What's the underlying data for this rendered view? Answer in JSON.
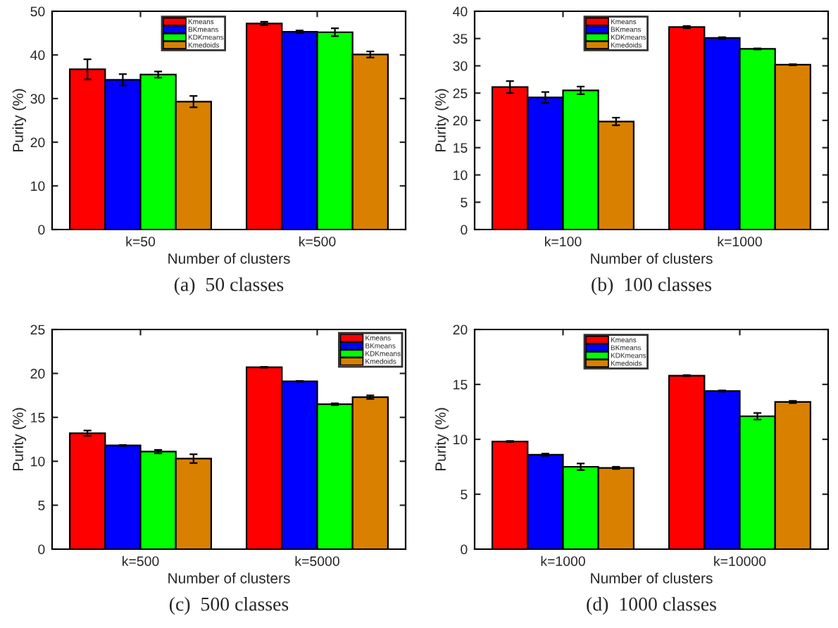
{
  "chart_data": [
    {
      "type": "bar",
      "title": "(a)  50 classes",
      "xlabel": "Number of clusters",
      "ylabel": "Purity (%)",
      "categories": [
        "k=50",
        "k=500"
      ],
      "ylim": [
        0,
        50
      ],
      "yticks": [
        0,
        10,
        20,
        30,
        40,
        50
      ],
      "legend": "top",
      "grid": false,
      "series": [
        {
          "name": "Kmeans",
          "color": "#ff0000",
          "values": [
            36.7,
            47.2
          ],
          "errors": [
            2.3,
            0.4
          ]
        },
        {
          "name": "BKmeans",
          "color": "#0000ff",
          "values": [
            34.3,
            45.3
          ],
          "errors": [
            1.3,
            0.3
          ]
        },
        {
          "name": "KDKmeans",
          "color": "#00ff00",
          "values": [
            35.5,
            45.2
          ],
          "errors": [
            0.7,
            0.9
          ]
        },
        {
          "name": "Kmedoids",
          "color": "#d98000",
          "values": [
            29.3,
            40.1
          ],
          "errors": [
            1.3,
            0.7
          ]
        }
      ]
    },
    {
      "type": "bar",
      "title": "(b)  100 classes",
      "xlabel": "Number of clusters",
      "ylabel": "Purity (%)",
      "categories": [
        "k=100",
        "k=1000"
      ],
      "ylim": [
        0,
        40
      ],
      "yticks": [
        0,
        5,
        10,
        15,
        20,
        25,
        30,
        35,
        40
      ],
      "legend": "top",
      "grid": false,
      "series": [
        {
          "name": "Kmeans",
          "color": "#ff0000",
          "values": [
            26.1,
            37.1
          ],
          "errors": [
            1.1,
            0.2
          ]
        },
        {
          "name": "BKmeans",
          "color": "#0000ff",
          "values": [
            24.2,
            35.1
          ],
          "errors": [
            1.0,
            0.15
          ]
        },
        {
          "name": "KDKmeans",
          "color": "#00ff00",
          "values": [
            25.5,
            33.1
          ],
          "errors": [
            0.7,
            0.1
          ]
        },
        {
          "name": "Kmedoids",
          "color": "#d98000",
          "values": [
            19.8,
            30.2
          ],
          "errors": [
            0.7,
            0.1
          ]
        }
      ]
    },
    {
      "type": "bar",
      "title": "(c)  500 classes",
      "xlabel": "Number of clusters",
      "ylabel": "Purity (%)",
      "categories": [
        "k=500",
        "k=5000"
      ],
      "ylim": [
        0,
        25
      ],
      "yticks": [
        0,
        5,
        10,
        15,
        20,
        25
      ],
      "legend": "top right",
      "grid": false,
      "series": [
        {
          "name": "Kmeans",
          "color": "#ff0000",
          "values": [
            13.2,
            20.7
          ],
          "errors": [
            0.3,
            0.05
          ]
        },
        {
          "name": "BKmeans",
          "color": "#0000ff",
          "values": [
            11.8,
            19.1
          ],
          "errors": [
            0.05,
            0.05
          ]
        },
        {
          "name": "KDKmeans",
          "color": "#00ff00",
          "values": [
            11.1,
            16.5
          ],
          "errors": [
            0.2,
            0.1
          ]
        },
        {
          "name": "Kmedoids",
          "color": "#d98000",
          "values": [
            10.3,
            17.3
          ],
          "errors": [
            0.5,
            0.2
          ]
        }
      ]
    },
    {
      "type": "bar",
      "title": "(d)  1000 classes",
      "xlabel": "Number of clusters",
      "ylabel": "Purity (%)",
      "categories": [
        "k=1000",
        "k=10000"
      ],
      "ylim": [
        0,
        20
      ],
      "yticks": [
        0,
        5,
        10,
        15,
        20
      ],
      "legend": "top",
      "grid": false,
      "series": [
        {
          "name": "Kmeans",
          "color": "#ff0000",
          "values": [
            9.8,
            15.8
          ],
          "errors": [
            0.05,
            0.05
          ]
        },
        {
          "name": "BKmeans",
          "color": "#0000ff",
          "values": [
            8.6,
            14.4
          ],
          "errors": [
            0.1,
            0.05
          ]
        },
        {
          "name": "KDKmeans",
          "color": "#00ff00",
          "values": [
            7.5,
            12.1
          ],
          "errors": [
            0.3,
            0.3
          ]
        },
        {
          "name": "Kmedoids",
          "color": "#d98000",
          "values": [
            7.4,
            13.4
          ],
          "errors": [
            0.1,
            0.1
          ]
        }
      ]
    }
  ]
}
